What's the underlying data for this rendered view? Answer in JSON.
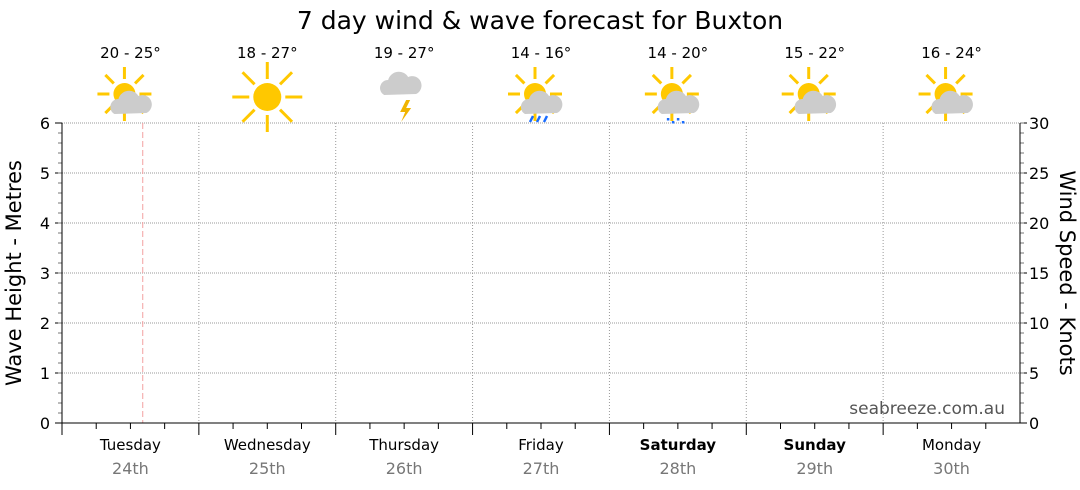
{
  "chart_data": {
    "type": "line",
    "title": "7 day wind & wave forecast for Buxton",
    "ylabel": "Wave Height - Metres",
    "y2label": "Wind Speed - Knots",
    "ylim": [
      0,
      6
    ],
    "y2lim": [
      0,
      30
    ],
    "yticks": [
      "0",
      "1",
      "2",
      "3",
      "4",
      "5",
      "6"
    ],
    "y2ticks": [
      "0",
      "5",
      "10",
      "15",
      "20",
      "25",
      "30"
    ],
    "grid": true,
    "series": [],
    "current_time_marker": {
      "day_index": 0,
      "fraction_of_day": 0.59,
      "color": "#f4a0a0"
    },
    "days": [
      {
        "day": "Tuesday",
        "date": "24th",
        "temp": "20 - 25°",
        "icon": "partly-cloudy-icon",
        "bold": false
      },
      {
        "day": "Wednesday",
        "date": "25th",
        "temp": "18 - 27°",
        "icon": "sunny-icon",
        "bold": false
      },
      {
        "day": "Thursday",
        "date": "26th",
        "temp": "19 - 27°",
        "icon": "thunderstorm-icon",
        "bold": false
      },
      {
        "day": "Friday",
        "date": "27th",
        "temp": "14 - 16°",
        "icon": "showers-icon",
        "bold": false
      },
      {
        "day": "Saturday",
        "date": "28th",
        "temp": "14 - 20°",
        "icon": "light-rain-icon",
        "bold": true
      },
      {
        "day": "Sunday",
        "date": "29th",
        "temp": "15 - 22°",
        "icon": "partly-cloudy-icon",
        "bold": true
      },
      {
        "day": "Monday",
        "date": "30th",
        "temp": "16 - 24°",
        "icon": "partly-cloudy-icon",
        "bold": false
      }
    ]
  },
  "watermark": "seabreeze.com.au",
  "colors": {
    "sun": "#ffc800",
    "cloud": "#cccccc",
    "rain": "#1a6dff",
    "bolt": "#f0b400",
    "date": "#777777"
  }
}
